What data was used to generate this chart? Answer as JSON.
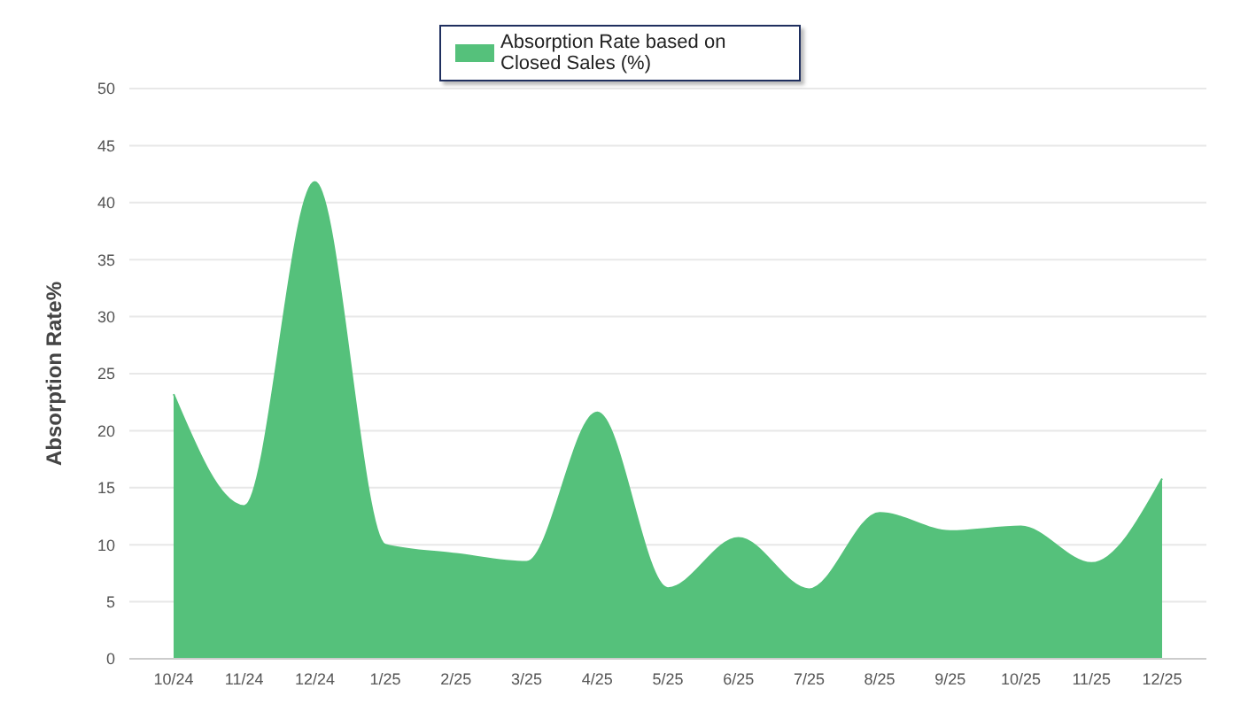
{
  "chart_data": {
    "type": "area",
    "ylabel": "Absorption Rate%",
    "categories": [
      "10/24",
      "11/24",
      "12/24",
      "1/25",
      "2/25",
      "3/25",
      "4/25",
      "5/25",
      "6/25",
      "7/25",
      "8/25",
      "9/25",
      "10/25",
      "11/25",
      "12/25"
    ],
    "series": [
      {
        "name": "Absorption Rate based on Closed Sales (%)",
        "color": "#55c17b",
        "values": [
          23.2,
          13.4,
          41.8,
          10,
          9.2,
          8.5,
          21.6,
          6.2,
          10.6,
          6.1,
          12.8,
          11.2,
          11.6,
          8.4,
          15.8
        ]
      }
    ],
    "ylim": [
      0,
      50
    ],
    "yticks": [
      0,
      5,
      10,
      15,
      20,
      25,
      30,
      35,
      40,
      45,
      50
    ],
    "grid": "y",
    "legend": "top"
  }
}
